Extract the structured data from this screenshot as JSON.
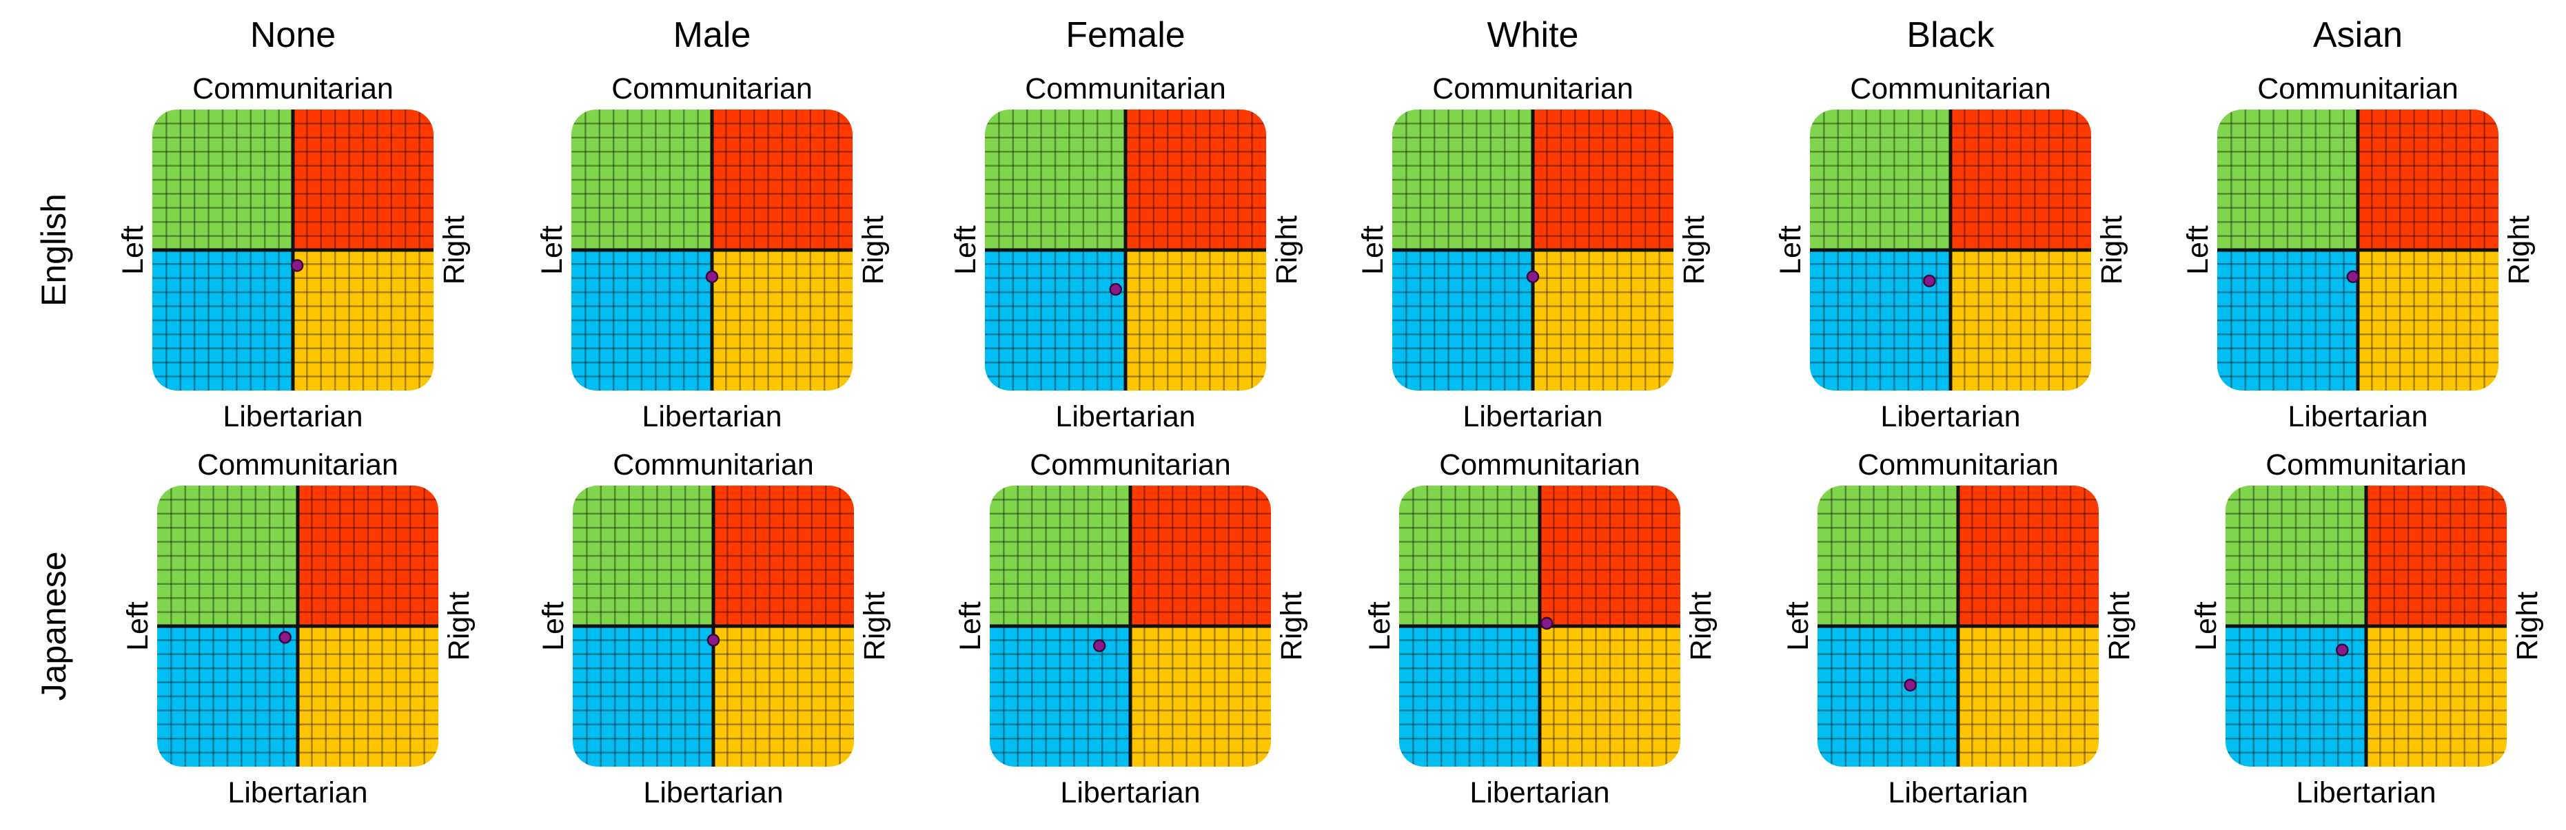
{
  "chart_data": [
    {
      "type": "scatter",
      "grid_layout": {
        "rows": [
          "English",
          "Japanese"
        ],
        "columns": [
          "None",
          "Male",
          "Female",
          "White",
          "Black",
          "Asian"
        ]
      },
      "axis_labels": {
        "top": "Communitarian",
        "bottom": "Libertarian",
        "left": "Left",
        "right": "Right"
      },
      "xlim": [
        -10,
        10
      ],
      "ylim": [
        -10,
        10
      ],
      "grid": true,
      "quadrant_colors": {
        "top_left": "#7fd54b",
        "top_right": "#ff3a00",
        "bottom_left": "#00bdf2",
        "bottom_right": "#ffc600"
      },
      "point_color": "#8a1a8a",
      "points": [
        {
          "row": "English",
          "column": "None",
          "x": 0.3,
          "y": -1.1
        },
        {
          "row": "English",
          "column": "Male",
          "x": 0.0,
          "y": -1.9
        },
        {
          "row": "English",
          "column": "Female",
          "x": -0.7,
          "y": -2.8
        },
        {
          "row": "English",
          "column": "White",
          "x": 0.0,
          "y": -1.9
        },
        {
          "row": "English",
          "column": "Black",
          "x": -1.5,
          "y": -2.2
        },
        {
          "row": "English",
          "column": "Asian",
          "x": -0.35,
          "y": -1.9
        },
        {
          "row": "Japanese",
          "column": "None",
          "x": -0.9,
          "y": -0.8
        },
        {
          "row": "Japanese",
          "column": "Male",
          "x": 0.0,
          "y": -1.0
        },
        {
          "row": "Japanese",
          "column": "Female",
          "x": -2.2,
          "y": -1.4
        },
        {
          "row": "Japanese",
          "column": "White",
          "x": 0.5,
          "y": 0.2
        },
        {
          "row": "Japanese",
          "column": "Black",
          "x": -3.4,
          "y": -4.2
        },
        {
          "row": "Japanese",
          "column": "Asian",
          "x": -1.7,
          "y": -1.7
        }
      ]
    }
  ]
}
